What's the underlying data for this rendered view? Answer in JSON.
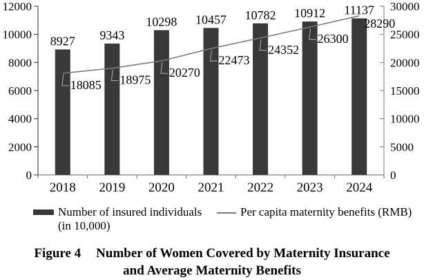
{
  "figure": {
    "caption": {
      "prefix": "Figure 4",
      "line1": "Number of Women Covered by Maternity Insurance",
      "line2": "and Average Maternity Benefits"
    }
  },
  "legend": {
    "bar_label_line1": "Number of insured individuals",
    "bar_label_line2": "(in 10,000)",
    "line_label": "Per capita maternity benefits (RMB)"
  },
  "colors": {
    "bar": "#383838",
    "line": "#7a7a7a",
    "leader": "#b3b3b3",
    "axis_left": "#4a4a4a",
    "axis_right": "#8c8c8c",
    "axis_bottom": "#7f7f7f",
    "text": "#000000"
  },
  "chart_data": {
    "type": "bar+line",
    "categories": [
      "2018",
      "2019",
      "2020",
      "2021",
      "2022",
      "2023",
      "2024"
    ],
    "series": [
      {
        "name": "Number of insured individuals (in 10,000)",
        "type": "bar",
        "axis": "left",
        "values": [
          8927,
          9343,
          10298,
          10457,
          10782,
          10912,
          11137
        ]
      },
      {
        "name": "Per capita maternity benefits (RMB)",
        "type": "line",
        "axis": "right",
        "values": [
          18085,
          18975,
          20270,
          22473,
          24352,
          26300,
          28290
        ]
      }
    ],
    "left_axis": {
      "min": 0,
      "max": 12000,
      "step": 2000,
      "tick_labels": [
        "0",
        "2000",
        "4000",
        "6000",
        "8000",
        "10000",
        "12000"
      ]
    },
    "right_axis": {
      "min": 0,
      "max": 30000,
      "step": 5000,
      "tick_labels": [
        "0",
        "5000",
        "10000",
        "15000",
        "20000",
        "25000",
        "30000"
      ]
    },
    "data_labels": true,
    "grid": false,
    "legend_position": "bottom"
  }
}
